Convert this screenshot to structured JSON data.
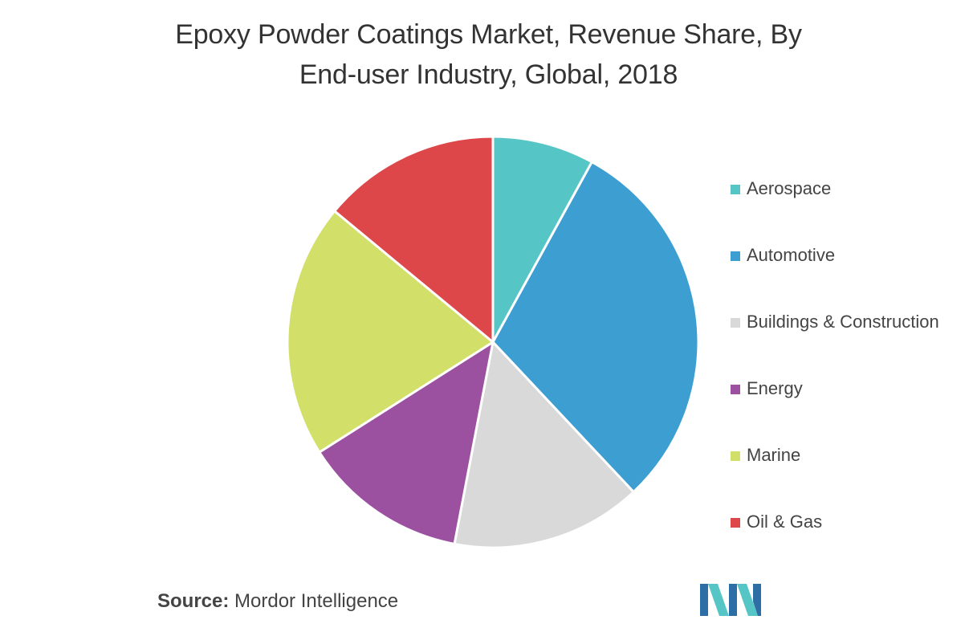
{
  "chart_data": {
    "type": "pie",
    "title_lines": [
      "Epoxy Powder Coatings Market, Revenue Share, By",
      "End-user Industry, Global, 2018"
    ],
    "categories": [
      "Aerospace",
      "Automotive",
      "Buildings & Construction",
      "Energy",
      "Marine",
      "Oil & Gas"
    ],
    "values": [
      8,
      30,
      15,
      13,
      20,
      14
    ],
    "colors": [
      "#55c5c5",
      "#3c9ed1",
      "#d9d9d9",
      "#9b50a0",
      "#d2df68",
      "#dd474a"
    ],
    "legend_position": "right"
  },
  "source": {
    "key": "Source:",
    "value": "Mordor Intelligence"
  },
  "logo": {
    "icon": "mordor-intelligence-logo",
    "colors": [
      "#2e6ea6",
      "#55c5c5"
    ]
  }
}
